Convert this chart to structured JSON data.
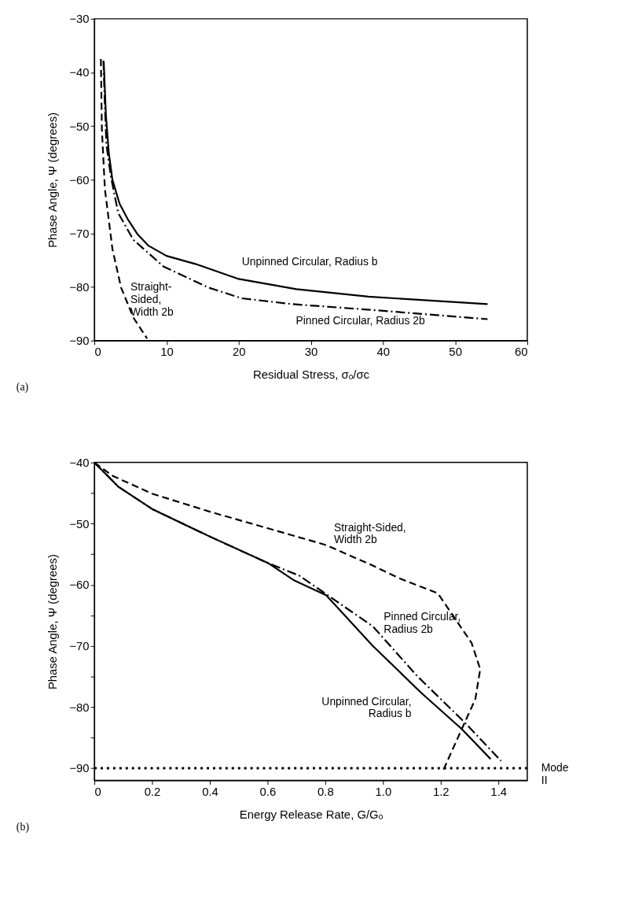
{
  "chart_data": [
    {
      "type": "line",
      "xlabel": "Residual Stress, σₒ/σc",
      "ylabel": "Phase Angle, Ψ (degrees)",
      "xlim": [
        0,
        60
      ],
      "xticks": [
        0,
        10,
        20,
        30,
        40,
        50,
        60
      ],
      "ylim": [
        -90,
        -30
      ],
      "yticks": [
        -30,
        -40,
        -50,
        -60,
        -70,
        -80,
        -90
      ],
      "grid": false,
      "annotations": [
        "(a)"
      ],
      "series": [
        {
          "name": "Unpinned Circular,  Radius b",
          "color": "#000000",
          "line_style": "solid",
          "x": [
            1.3,
            1.6,
            2,
            2.5,
            3.5,
            4.6,
            6,
            7.5,
            10,
            14,
            20,
            28,
            38,
            54.5
          ],
          "values": [
            -38,
            -48,
            -55,
            -60,
            -64.5,
            -67.3,
            -70.2,
            -72.3,
            -74.2,
            -75.7,
            -78.5,
            -80.4,
            -81.8,
            -83.2
          ]
        },
        {
          "name": "Pinned Circular,  Radius  2b",
          "color": "#000000",
          "line_style": "dashdot",
          "x": [
            1.25,
            1.45,
            1.66,
            2.3,
            3.3,
            5.4,
            9.6,
            15.8,
            20.4,
            27.5,
            38.7,
            54.5
          ],
          "values": [
            -37.8,
            -46,
            -53.4,
            -59.5,
            -66.2,
            -71.2,
            -76.2,
            -80.1,
            -82.1,
            -83.2,
            -84.3,
            -86
          ]
        },
        {
          "name": "Straight-\nSided,\nWidth  2b",
          "color": "#000000",
          "line_style": "dashed",
          "x": [
            0.9,
            1.04,
            1.46,
            2.5,
            3.7,
            5.4,
            7.3
          ],
          "values": [
            -37.5,
            -50.6,
            -61.8,
            -72.9,
            -80.1,
            -85.7,
            -89.6
          ]
        }
      ]
    },
    {
      "type": "line",
      "xlabel": "Energy Release Rate,  G/Gₒ",
      "ylabel": "Phase Angle,  Ψ (degrees)",
      "xlim": [
        0,
        1.5
      ],
      "xticks": [
        {
          "value": 0,
          "label": "0"
        },
        0.2,
        0.4,
        0.6,
        0.8,
        {
          "value": 1,
          "label": "1.0"
        },
        1.2,
        1.4
      ],
      "ylim": [
        -92,
        -40
      ],
      "yticks": [
        -40,
        {
          "value": -45,
          "label": null
        },
        -50,
        {
          "value": -55,
          "label": null
        },
        -60,
        {
          "value": -65,
          "label": null
        },
        -70,
        {
          "value": -75,
          "label": null
        },
        -80,
        {
          "value": -85,
          "label": null
        },
        -90
      ],
      "grid": false,
      "annotations": [
        "(b)"
      ],
      "ref_lines": [
        {
          "axis": "y",
          "value": -90,
          "label": "Mode\nII",
          "line_style": "dotted"
        }
      ],
      "series": [
        {
          "name": "Straight-Sided,\nWidth 2b",
          "color": "#000000",
          "line_style": "dashed",
          "x": [
            0,
            0.064,
            0.2,
            0.404,
            0.604,
            0.803,
            0.957,
            1.06,
            1.19,
            1.307,
            1.337,
            1.32,
            1.273,
            1.208
          ],
          "values": [
            -40,
            -42.2,
            -45.1,
            -48.1,
            -50.8,
            -53.5,
            -56.7,
            -59,
            -61.4,
            -69.5,
            -73.8,
            -78.7,
            -83.6,
            -90.4
          ]
        },
        {
          "name": "Pinned Circular,\nRadius 2b",
          "color": "#000000",
          "line_style": "dashdot",
          "x": [
            0,
            0.084,
            0.2,
            0.404,
            0.604,
            0.71,
            0.965,
            1.118,
            1.283,
            1.409
          ],
          "values": [
            -40,
            -44,
            -47.6,
            -52.2,
            -56.5,
            -58.5,
            -66.8,
            -74.9,
            -82.5,
            -88.8
          ]
        },
        {
          "name": "Unpinned Circular,\nRadius b",
          "color": "#000000",
          "line_style": "solid",
          "x": [
            0,
            0.084,
            0.2,
            0.404,
            0.604,
            0.693,
            0.803,
            0.965,
            1.131,
            1.273,
            1.373
          ],
          "values": [
            -40,
            -44,
            -47.6,
            -52.2,
            -56.5,
            -59.3,
            -61.7,
            -70,
            -77.6,
            -83.6,
            -88.5
          ]
        }
      ]
    }
  ]
}
